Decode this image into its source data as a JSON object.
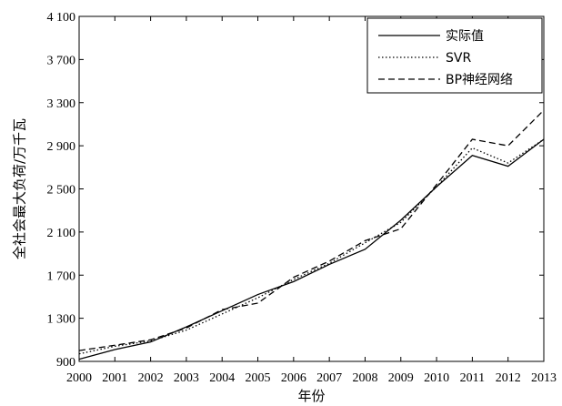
{
  "chart_data": {
    "type": "line",
    "title": "",
    "xlabel": "年份",
    "ylabel": "全社会最大负荷/万千瓦",
    "x": [
      2000,
      2001,
      2002,
      2003,
      2004,
      2005,
      2006,
      2007,
      2008,
      2009,
      2010,
      2011,
      2012,
      2013
    ],
    "xlim": [
      2000,
      2013
    ],
    "ylim": [
      900,
      4100
    ],
    "yticks": [
      900,
      1300,
      1700,
      2100,
      2500,
      2900,
      3300,
      3700,
      4100
    ],
    "ytick_labels": [
      "900",
      "1 300",
      "1 700",
      "2 100",
      "2 500",
      "2 900",
      "3 300",
      "3 700",
      "4 100"
    ],
    "xtick_labels": [
      "2000",
      "2001",
      "2002",
      "2003",
      "2004",
      "2005",
      "2006",
      "2007",
      "2008",
      "2009",
      "2010",
      "2011",
      "2012",
      "2013"
    ],
    "grid": false,
    "legend_position": "top-right",
    "series": [
      {
        "name": "实际值",
        "style": "solid",
        "color": "#000000",
        "values": [
          920,
          1010,
          1080,
          1220,
          1370,
          1520,
          1640,
          1800,
          1940,
          2210,
          2520,
          2810,
          2710,
          2960
        ]
      },
      {
        "name": "SVR",
        "style": "dotted",
        "color": "#000000",
        "values": [
          970,
          1040,
          1090,
          1190,
          1340,
          1490,
          1660,
          1810,
          2000,
          2190,
          2520,
          2880,
          2740,
          2960
        ]
      },
      {
        "name": "BP神经网络",
        "style": "dashed",
        "color": "#000000",
        "values": [
          1000,
          1050,
          1100,
          1210,
          1380,
          1440,
          1680,
          1830,
          2020,
          2130,
          2540,
          2960,
          2900,
          3230
        ]
      }
    ]
  }
}
